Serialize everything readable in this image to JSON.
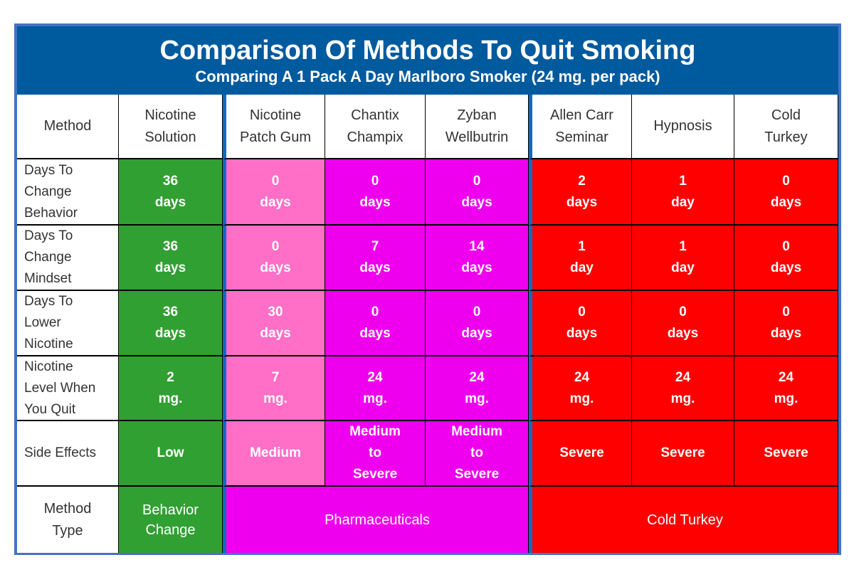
{
  "title": "Comparison Of Methods To Quit Smoking",
  "subtitle": "Comparing A 1 Pack A Day Marlboro Smoker (24 mg. per pack)",
  "colors": {
    "banner": "#005a9e",
    "border": "#4472c4",
    "divider": "#0a6cc4",
    "behavior": "#31a032",
    "gum": "#ff6ec7",
    "pharma": "#ee00ee",
    "cold": "#ff0000"
  },
  "header": {
    "label": "Method",
    "methods": [
      "Nicotine\nSolution",
      "Nicotine\nPatch Gum",
      "Chantix\nChampix",
      "Zyban\nWellbutrin",
      "Allen Carr\nSeminar",
      "Hypnosis",
      "Cold\nTurkey"
    ]
  },
  "rows": [
    {
      "label": "Days   To\nChange\nBehavior",
      "values": [
        "36\ndays",
        "0\ndays",
        "0\ndays",
        "0\ndays",
        "2\ndays",
        "1\nday",
        "0\ndays"
      ]
    },
    {
      "label": "Days To\nChange\nMindset",
      "values": [
        "36\ndays",
        "0\ndays",
        "7\ndays",
        "14\ndays",
        "1\nday",
        "1\nday",
        "0\ndays"
      ]
    },
    {
      "label": "Days To\nLower\nNicotine",
      "values": [
        "36\ndays",
        "30\ndays",
        "0\ndays",
        "0\ndays",
        "0\ndays",
        "0\ndays",
        "0\ndays"
      ]
    },
    {
      "label": "Nicotine\nLevel When\nYou Quit",
      "values": [
        "2\nmg.",
        "7\nmg.",
        "24\nmg.",
        "24\nmg.",
        "24\nmg.",
        "24\nmg.",
        "24\nmg."
      ]
    },
    {
      "label": "Side Effects",
      "values": [
        "Low",
        "Medium",
        "Medium\nto\nSevere",
        "Medium\nto\nSevere",
        "Severe",
        "Severe",
        "Severe"
      ]
    }
  ],
  "method_type": {
    "label": "Method\nType",
    "groups": [
      {
        "text": "Behavior\nChange",
        "span": 1,
        "color_key": "behavior"
      },
      {
        "text": "Pharmaceuticals",
        "span": 3,
        "color_key": "pharma"
      },
      {
        "text": "Cold Turkey",
        "span": 3,
        "color_key": "cold"
      }
    ]
  }
}
